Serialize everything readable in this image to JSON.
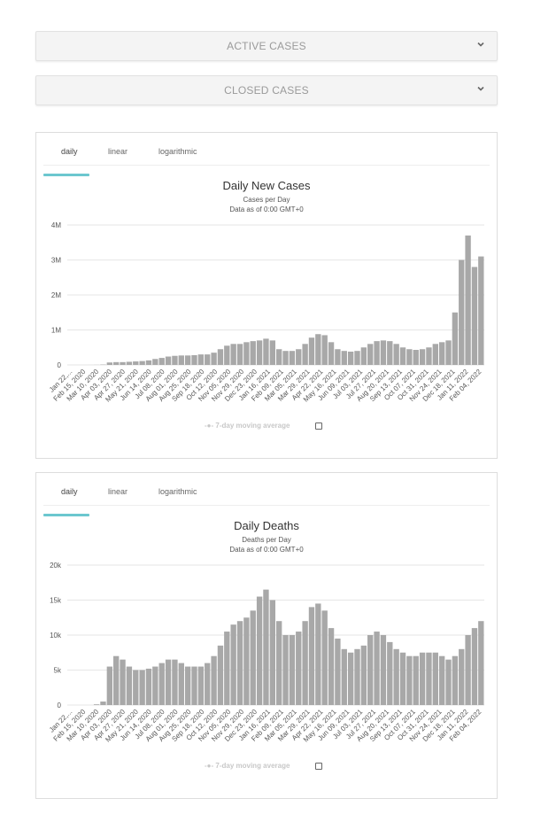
{
  "accordions": [
    {
      "label": "ACTIVE CASES"
    },
    {
      "label": "CLOSED CASES"
    }
  ],
  "tabs": [
    "daily",
    "linear",
    "logarithmic"
  ],
  "legend_label": "7-day moving average",
  "chart_data": [
    {
      "type": "bar",
      "title": "Daily New Cases",
      "subtitle": "Cases per Day",
      "note": "Data as of 0:00 GMT+0",
      "yticks": [
        "0",
        "1M",
        "2M",
        "3M",
        "4M"
      ],
      "ylim": [
        0,
        4000000
      ],
      "unit": 1000000,
      "color": "#a8a8a8",
      "xlabels": [
        "Jan 22,...",
        "Feb 15, 2020",
        "Mar 10, 2020",
        "Apr 03, 2020",
        "Apr 27, 2020",
        "May 21, 2020",
        "Jun 14, 2020",
        "Jul 08, 2020",
        "Aug 01, 2020",
        "Aug 25, 2020",
        "Sep 18, 2020",
        "Oct 12, 2020",
        "Nov 05, 2020",
        "Nov 29, 2020",
        "Dec 23, 2020",
        "Jan 16, 2021",
        "Feb 09, 2021",
        "Mar 05, 2021",
        "Mar 29, 2021",
        "Apr 22, 2021",
        "May 16, 2021",
        "Jun 09, 2021",
        "Jul 03, 2021",
        "Jul 27, 2021",
        "Aug 20, 2021",
        "Sep 13, 2021",
        "Oct 07, 2021",
        "Oct 31, 2021",
        "Nov 24, 2021",
        "Dec 18, 2021",
        "Jan 11, 2022",
        "Feb 04, 2022"
      ],
      "values_in_units": [
        0,
        0,
        0,
        0.001,
        0.003,
        0.01,
        0.07,
        0.08,
        0.08,
        0.09,
        0.1,
        0.11,
        0.13,
        0.17,
        0.2,
        0.24,
        0.26,
        0.27,
        0.27,
        0.28,
        0.3,
        0.3,
        0.35,
        0.45,
        0.55,
        0.6,
        0.6,
        0.65,
        0.68,
        0.7,
        0.75,
        0.7,
        0.45,
        0.4,
        0.4,
        0.45,
        0.6,
        0.78,
        0.88,
        0.85,
        0.65,
        0.45,
        0.4,
        0.38,
        0.4,
        0.5,
        0.6,
        0.68,
        0.7,
        0.68,
        0.6,
        0.5,
        0.45,
        0.43,
        0.45,
        0.5,
        0.6,
        0.65,
        0.7,
        1.5,
        3.0,
        3.7,
        2.8,
        3.1
      ]
    },
    {
      "type": "bar",
      "title": "Daily Deaths",
      "subtitle": "Deaths per Day",
      "note": "Data as of 0:00 GMT+0",
      "yticks": [
        "0",
        "5k",
        "10k",
        "15k",
        "20k"
      ],
      "ylim": [
        0,
        20000
      ],
      "unit": 1000,
      "color": "#a8a8a8",
      "xlabels": [
        "Jan 22,...",
        "Feb 15, 2020",
        "Mar 10, 2020",
        "Apr 03, 2020",
        "Apr 27, 2020",
        "May 21, 2020",
        "Jun 14, 2020",
        "Jul 08, 2020",
        "Aug 01, 2020",
        "Aug 25, 2020",
        "Sep 18, 2020",
        "Oct 12, 2020",
        "Nov 05, 2020",
        "Nov 29, 2020",
        "Dec 23, 2020",
        "Jan 16, 2021",
        "Feb 09, 2021",
        "Mar 05, 2021",
        "Mar 29, 2021",
        "Apr 22, 2021",
        "May 16, 2021",
        "Jun 09, 2021",
        "Jul 03, 2021",
        "Jul 27, 2021",
        "Aug 20, 2021",
        "Sep 13, 2021",
        "Oct 07, 2021",
        "Oct 31, 2021",
        "Nov 24, 2021",
        "Dec 18, 2021",
        "Jan 11, 2022",
        "Feb 04, 2022"
      ],
      "values_in_units": [
        0,
        0,
        0,
        0,
        0.1,
        0.5,
        5.5,
        7.0,
        6.5,
        5.5,
        5.0,
        5.0,
        5.2,
        5.5,
        6.0,
        6.5,
        6.5,
        6.0,
        5.5,
        5.5,
        5.5,
        6.0,
        7.0,
        8.5,
        10.5,
        11.5,
        12,
        12.5,
        13.5,
        15.5,
        16.5,
        15,
        12,
        10,
        10,
        10.5,
        12,
        14,
        14.5,
        13.5,
        11,
        9.5,
        8,
        7.5,
        8,
        8.5,
        10,
        10.5,
        10,
        9,
        8,
        7.5,
        7,
        7,
        7.5,
        7.5,
        7.5,
        7,
        6.5,
        7,
        8,
        10,
        11,
        12
      ]
    }
  ]
}
